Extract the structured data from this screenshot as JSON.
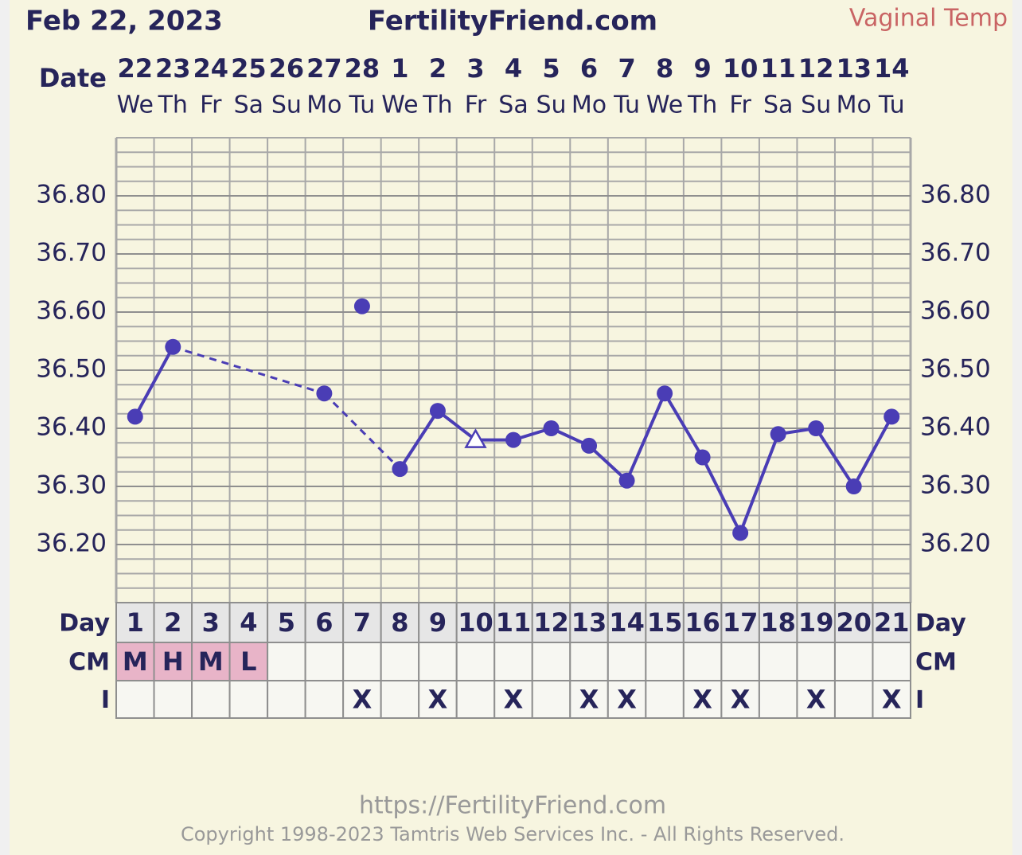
{
  "chart_data": {
    "type": "line",
    "date": "Feb 22, 2023",
    "title": "FertilityFriend.com",
    "subtitle": "Vaginal Temp",
    "x_label": "Date",
    "categories": [
      "22",
      "23",
      "24",
      "25",
      "26",
      "27",
      "28",
      "1",
      "2",
      "3",
      "4",
      "5",
      "6",
      "7",
      "8",
      "9",
      "10",
      "11",
      "12",
      "13",
      "14"
    ],
    "weekdays": [
      "We",
      "Th",
      "Fr",
      "Sa",
      "Su",
      "Mo",
      "Tu",
      "We",
      "Th",
      "Fr",
      "Sa",
      "Su",
      "Mo",
      "Tu",
      "We",
      "Th",
      "Fr",
      "Sa",
      "Su",
      "Mo",
      "Tu"
    ],
    "ylim": [
      36.1,
      36.9
    ],
    "yticks": [
      {
        "value": 36.2,
        "label": "36.20"
      },
      {
        "value": 36.3,
        "label": "36.30"
      },
      {
        "value": 36.4,
        "label": "36.40"
      },
      {
        "value": 36.5,
        "label": "36.50"
      },
      {
        "value": 36.6,
        "label": "36.60"
      },
      {
        "value": 36.7,
        "label": "36.70"
      },
      {
        "value": 36.8,
        "label": "36.80"
      }
    ],
    "grid": true,
    "minor_grid_step": 0.025,
    "series": [
      {
        "color": "#4a3db5",
        "values": [
          36.42,
          36.54,
          null,
          null,
          null,
          36.46,
          null,
          36.33,
          36.43,
          36.38,
          36.38,
          36.4,
          36.37,
          36.31,
          36.46,
          36.35,
          36.22,
          36.39,
          36.4,
          36.3,
          36.42
        ],
        "markers": [
          "circle",
          "circle",
          null,
          null,
          null,
          "circle",
          null,
          "circle",
          "circle",
          "triangle-open",
          "circle",
          "circle",
          "circle",
          "circle",
          "circle",
          "circle",
          "circle",
          "circle",
          "circle",
          "circle",
          "circle"
        ]
      },
      {
        "color": "#4a3db5",
        "values": [
          null,
          null,
          null,
          null,
          null,
          null,
          36.61,
          null,
          null,
          null,
          null,
          null,
          null,
          null,
          null,
          null,
          null,
          null,
          null,
          null,
          null
        ],
        "marker": "circle"
      }
    ],
    "table": {
      "day_label": "Day",
      "cm_label": "CM",
      "i_label": "I",
      "days": [
        1,
        2,
        3,
        4,
        5,
        6,
        7,
        8,
        9,
        10,
        11,
        12,
        13,
        14,
        15,
        16,
        17,
        18,
        19,
        20,
        21
      ],
      "cm": [
        "M",
        "H",
        "M",
        "L",
        null,
        null,
        null,
        null,
        null,
        null,
        null,
        null,
        null,
        null,
        null,
        null,
        null,
        null,
        null,
        null,
        null
      ],
      "cm_color": "#e8b4c8",
      "intercourse": [
        null,
        null,
        null,
        null,
        null,
        null,
        "X",
        null,
        "X",
        null,
        "X",
        null,
        "X",
        "X",
        null,
        "X",
        "X",
        null,
        "X",
        null,
        "X"
      ]
    },
    "footer": {
      "url": "https://FertilityFriend.com",
      "copyright": "Copyright 1998-2023 Tamtris Web Services Inc. - All Rights Reserved."
    }
  }
}
